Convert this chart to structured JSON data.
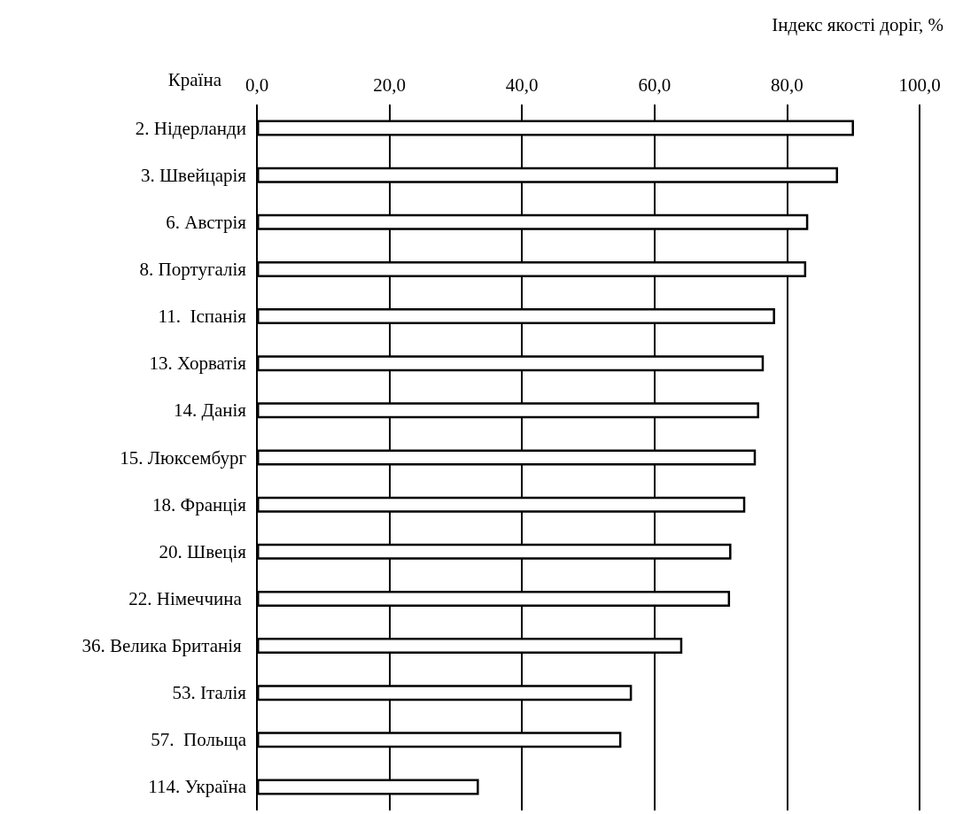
{
  "chart_data": {
    "type": "bar",
    "orientation": "horizontal",
    "xlabel": "Індекс якості доріг, %",
    "ylabel": "Країна",
    "categories": [
      "2. Нідерланди",
      "3. Швейцарія",
      "6. Австрія",
      "8. Португалія",
      "11.  Іспанія",
      "13. Хорватія",
      "14. Данія",
      "15. Люксембург",
      "18. Франція",
      "20. Швеція",
      "22. Німеччина ",
      "36. Велика Британія ",
      "53. Італія",
      "57.  Польща",
      "114. Україна"
    ],
    "values": [
      90.1,
      87.7,
      83.2,
      82.9,
      78.2,
      76.5,
      75.8,
      75.3,
      73.7,
      71.6,
      71.4,
      64.2,
      56.6,
      55.0,
      33.5
    ],
    "color": "#ffffff",
    "xlim": [
      0,
      100
    ],
    "xticks": [
      {
        "value": 0,
        "label": "0,0"
      },
      {
        "value": 20,
        "label": "20,0"
      },
      {
        "value": 40,
        "label": "40,0"
      },
      {
        "value": 60,
        "label": "60,0"
      },
      {
        "value": 80,
        "label": "80,0"
      },
      {
        "value": 100,
        "label": "100,0"
      }
    ],
    "grid": "x"
  }
}
